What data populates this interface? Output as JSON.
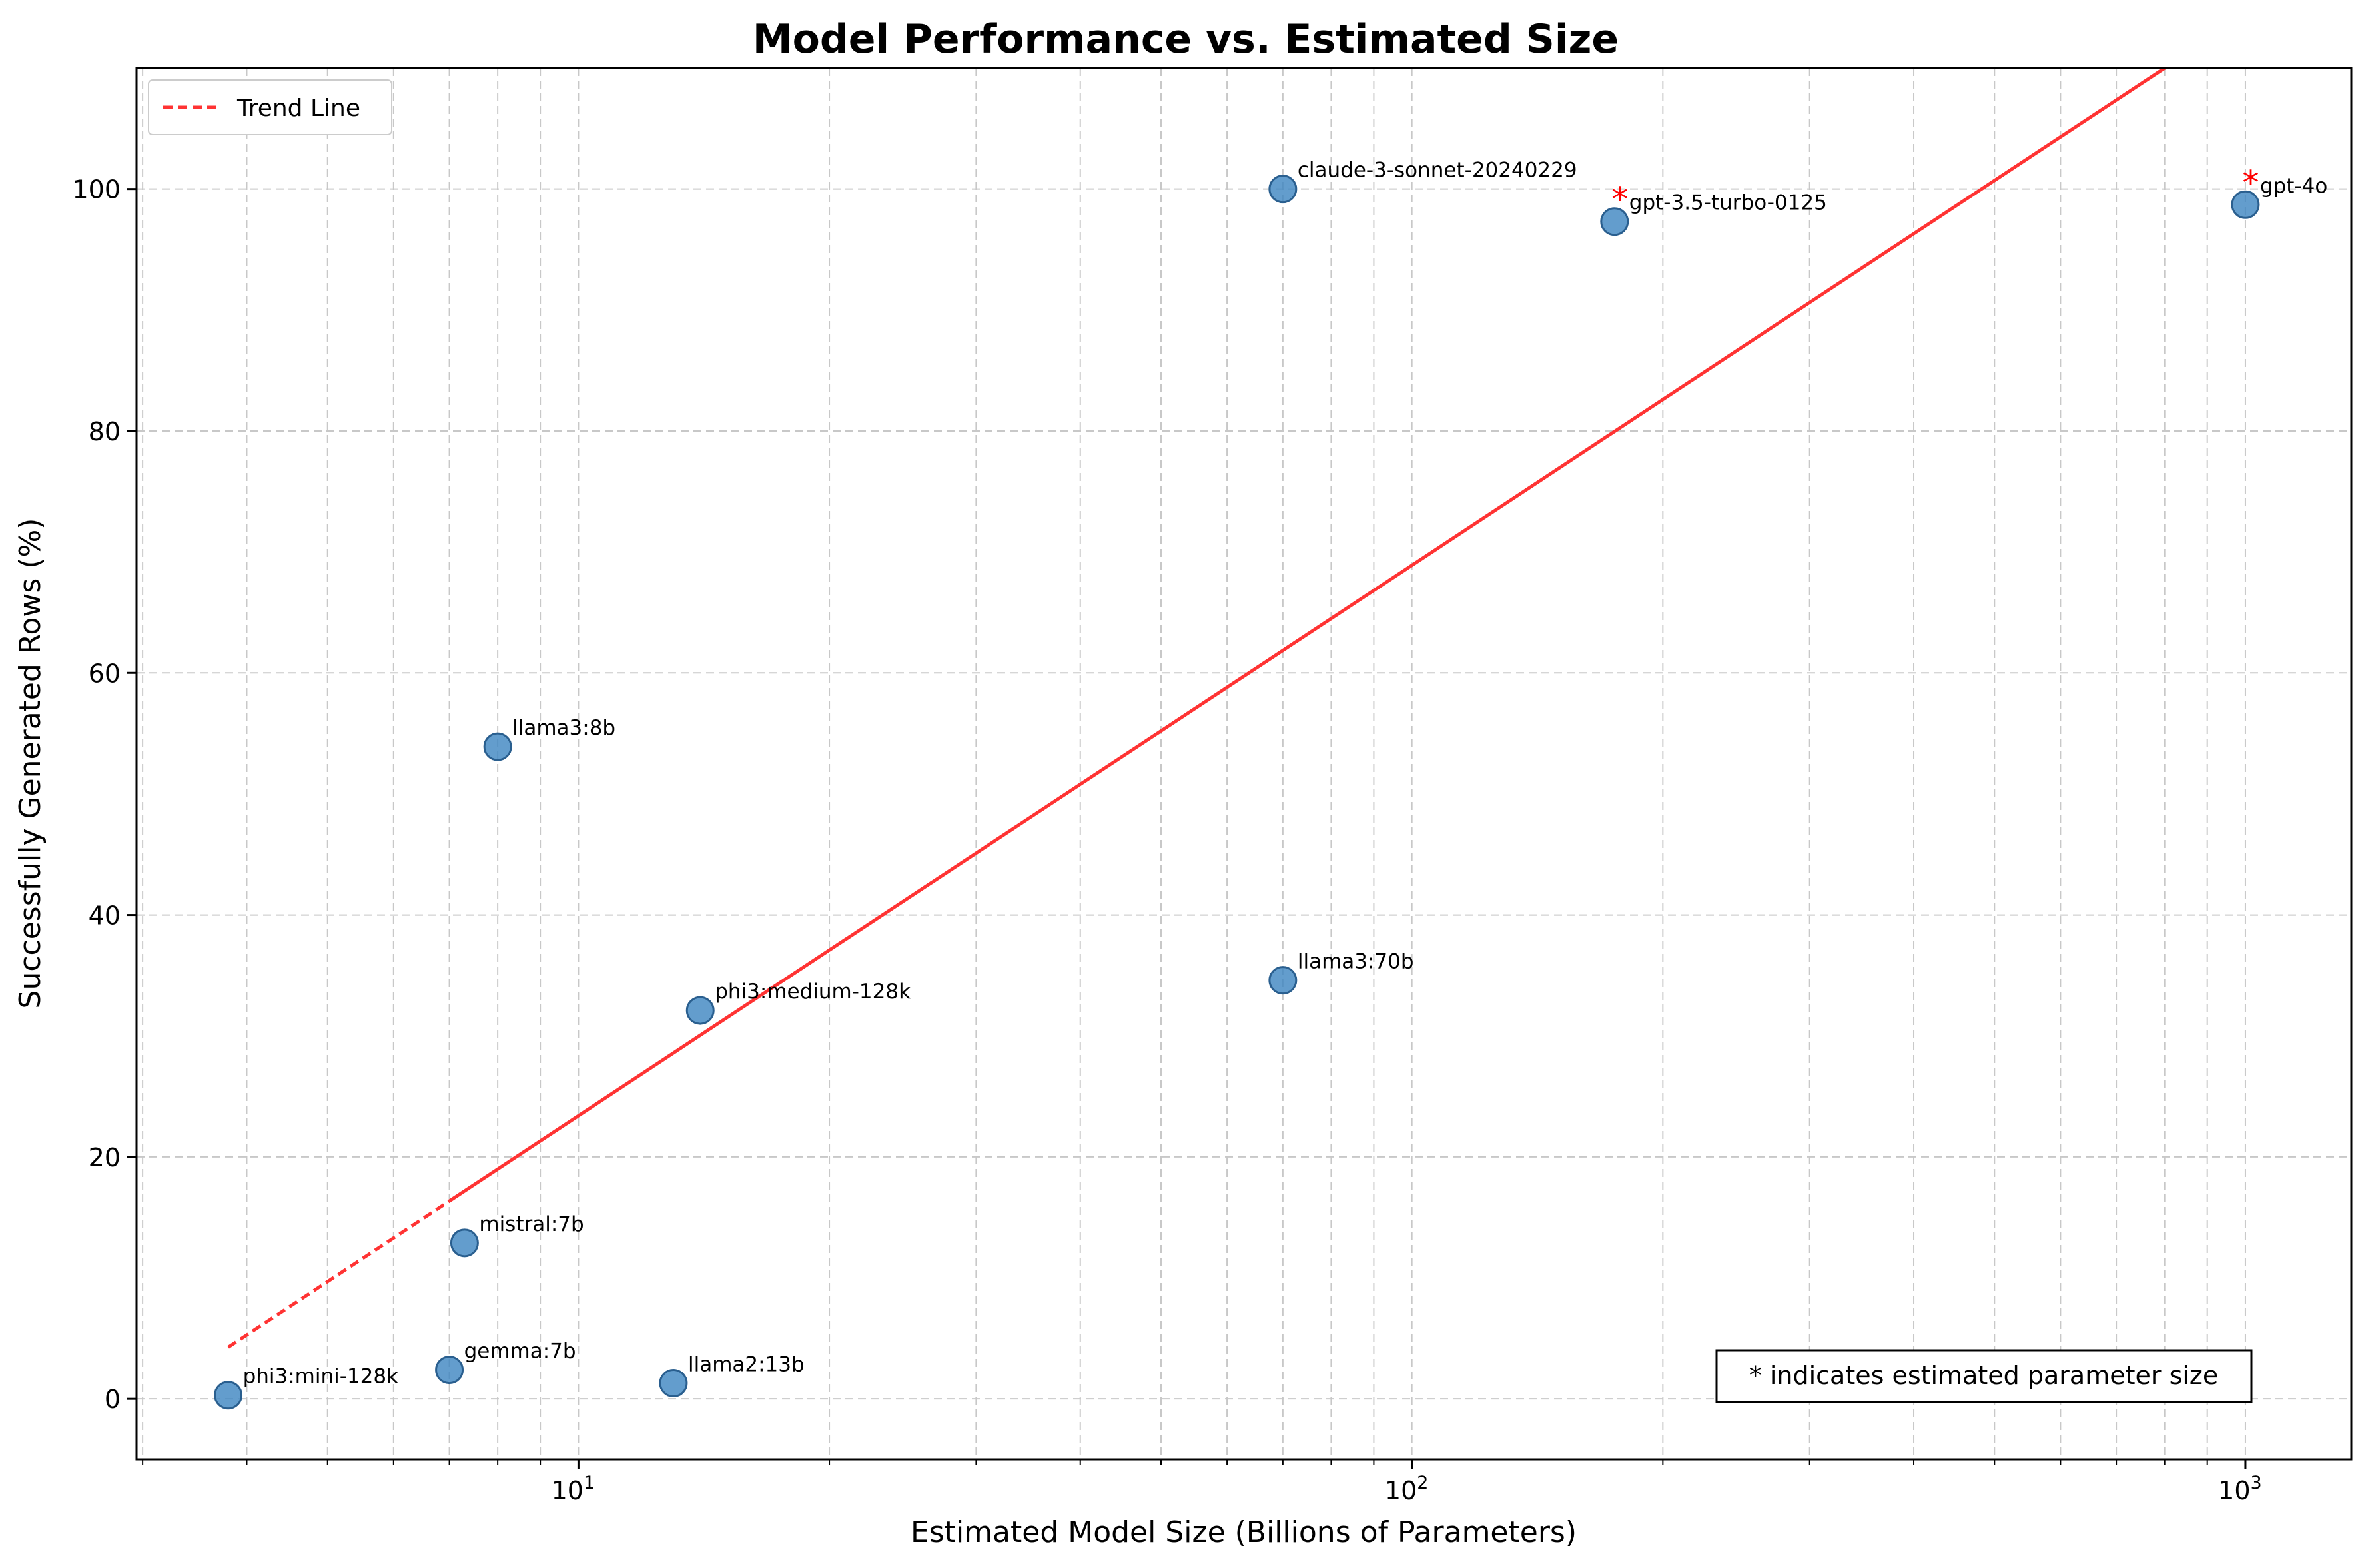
{
  "chart_data": {
    "type": "scatter",
    "title": "Model Performance vs. Estimated Size",
    "xlabel": "Estimated Model Size (Billions of Parameters)",
    "ylabel": "Successfully Generated Rows (%)",
    "x_scale": "log",
    "xlim": [
      2.95,
      1340
    ],
    "ylim": [
      -5,
      110
    ],
    "x_ticks": [
      {
        "value": 10,
        "base": "10",
        "exp": "1"
      },
      {
        "value": 100,
        "base": "10",
        "exp": "2"
      },
      {
        "value": 1000,
        "base": "10",
        "exp": "3"
      }
    ],
    "y_ticks": [
      0,
      20,
      40,
      60,
      80,
      100
    ],
    "grid": true,
    "points": [
      {
        "label": "phi3:mini-128k",
        "x": 3.8,
        "y": 0.3,
        "estimated": false
      },
      {
        "label": "gemma:7b",
        "x": 7.0,
        "y": 2.4,
        "estimated": false
      },
      {
        "label": "mistral:7b",
        "x": 7.3,
        "y": 12.9,
        "estimated": false
      },
      {
        "label": "llama3:8b",
        "x": 8.0,
        "y": 53.9,
        "estimated": false
      },
      {
        "label": "llama2:13b",
        "x": 13.0,
        "y": 1.3,
        "estimated": false
      },
      {
        "label": "phi3:medium-128k",
        "x": 14.0,
        "y": 32.1,
        "estimated": false
      },
      {
        "label": "llama3:70b",
        "x": 70.0,
        "y": 34.6,
        "estimated": false
      },
      {
        "label": "claude-3-sonnet-20240229",
        "x": 70.0,
        "y": 100.0,
        "estimated": false
      },
      {
        "label": "gpt-3.5-turbo-0125",
        "x": 175.0,
        "y": 97.3,
        "estimated": true
      },
      {
        "label": "gpt-4o",
        "x": 1000.0,
        "y": 98.7,
        "estimated": true
      }
    ],
    "trend_line": {
      "name": "Trend Line",
      "slope_per_decade": 45.5,
      "intercept_at_10": 23.4,
      "x_start": 3.8,
      "x_dashed_end": 7.0,
      "x_end": 1340,
      "color": "#ff3333",
      "style": "dashed"
    },
    "estimate_marker": "*",
    "point_color": "#3c85c0",
    "legend": {
      "position": "top-left",
      "entries": [
        "Trend Line"
      ]
    },
    "note": "* indicates estimated parameter size"
  }
}
